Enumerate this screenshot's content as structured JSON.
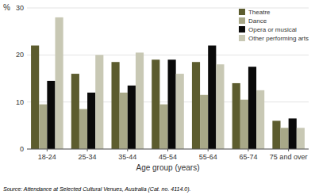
{
  "chart_data": {
    "type": "bar",
    "categories": [
      "18-24",
      "25-34",
      "35-44",
      "45-54",
      "55-64",
      "65-74",
      "75 and over"
    ],
    "series": [
      {
        "name": "Theatre",
        "color": "#5c5c2e",
        "values": [
          22,
          16,
          18.5,
          19,
          18.5,
          14,
          6
        ]
      },
      {
        "name": "Dance",
        "color": "#a8a888",
        "values": [
          9.5,
          8.5,
          12,
          9.5,
          11.5,
          10.5,
          4.5
        ]
      },
      {
        "name": "Opera or musical",
        "color": "#0a0a0a",
        "values": [
          14.5,
          12,
          13.5,
          19,
          22,
          17.5,
          6.5
        ]
      },
      {
        "name": "Other performing arts",
        "color": "#c8c8b4",
        "values": [
          28,
          20,
          20.5,
          16,
          18,
          12.5,
          4.5
        ]
      }
    ],
    "xlabel": "Age group (years)",
    "ylabel": "%",
    "ylim": [
      0,
      30
    ],
    "yticks": [
      0,
      10,
      20,
      30
    ],
    "grid": true,
    "legend": "upper right",
    "annotations": [
      "Source: Attendance at Selected Cultural Venues, Australia (Cat. no. 4114.0)."
    ]
  }
}
